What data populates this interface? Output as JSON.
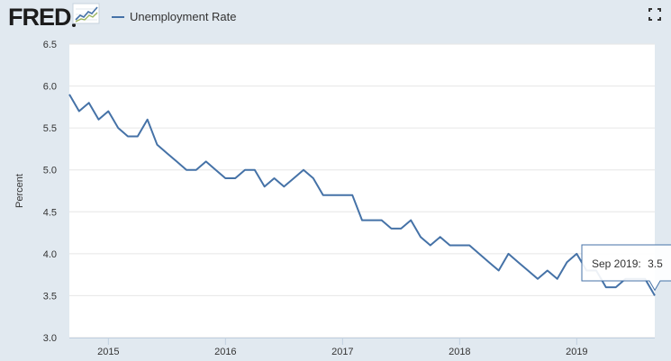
{
  "header": {
    "logo_text": "FRED",
    "legend_label": "Unemployment Rate",
    "fullscreen_icon": "fullscreen-icon"
  },
  "colors": {
    "series": "#4572a7",
    "plot_bg": "#ffffff",
    "page_bg": "#e1e9f0",
    "grid": "#e6e6e6"
  },
  "tooltip": {
    "label": "Sep 2019:",
    "value": "3.5"
  },
  "chart_data": {
    "type": "line",
    "title": "",
    "ylabel": "Percent",
    "xlabel": "",
    "ylim": [
      3.0,
      6.5
    ],
    "yticks": [
      "3.0",
      "3.5",
      "4.0",
      "4.5",
      "5.0",
      "5.5",
      "6.0",
      "6.5"
    ],
    "xlim": [
      "2014-09",
      "2019-09"
    ],
    "xticks": [
      "2015",
      "2016",
      "2017",
      "2018",
      "2019"
    ],
    "grid": true,
    "legend": "top-left",
    "series": [
      {
        "name": "Unemployment Rate",
        "x": [
          "2014-09",
          "2014-10",
          "2014-11",
          "2014-12",
          "2015-01",
          "2015-02",
          "2015-03",
          "2015-04",
          "2015-05",
          "2015-06",
          "2015-07",
          "2015-08",
          "2015-09",
          "2015-10",
          "2015-11",
          "2015-12",
          "2016-01",
          "2016-02",
          "2016-03",
          "2016-04",
          "2016-05",
          "2016-06",
          "2016-07",
          "2016-08",
          "2016-09",
          "2016-10",
          "2016-11",
          "2016-12",
          "2017-01",
          "2017-02",
          "2017-03",
          "2017-04",
          "2017-05",
          "2017-06",
          "2017-07",
          "2017-08",
          "2017-09",
          "2017-10",
          "2017-11",
          "2017-12",
          "2018-01",
          "2018-02",
          "2018-03",
          "2018-04",
          "2018-05",
          "2018-06",
          "2018-07",
          "2018-08",
          "2018-09",
          "2018-10",
          "2018-11",
          "2018-12",
          "2019-01",
          "2019-02",
          "2019-03",
          "2019-04",
          "2019-05",
          "2019-06",
          "2019-07",
          "2019-08",
          "2019-09"
        ],
        "values": [
          5.9,
          5.7,
          5.8,
          5.6,
          5.7,
          5.5,
          5.4,
          5.4,
          5.6,
          5.3,
          5.2,
          5.1,
          5.0,
          5.0,
          5.1,
          5.0,
          4.9,
          4.9,
          5.0,
          5.0,
          4.8,
          4.9,
          4.8,
          4.9,
          5.0,
          4.9,
          4.7,
          4.7,
          4.7,
          4.7,
          4.4,
          4.4,
          4.4,
          4.3,
          4.3,
          4.4,
          4.2,
          4.1,
          4.2,
          4.1,
          4.1,
          4.1,
          4.0,
          3.9,
          3.8,
          4.0,
          3.9,
          3.8,
          3.7,
          3.8,
          3.7,
          3.9,
          4.0,
          3.8,
          3.8,
          3.6,
          3.6,
          3.7,
          3.7,
          3.7,
          3.5
        ]
      }
    ]
  }
}
